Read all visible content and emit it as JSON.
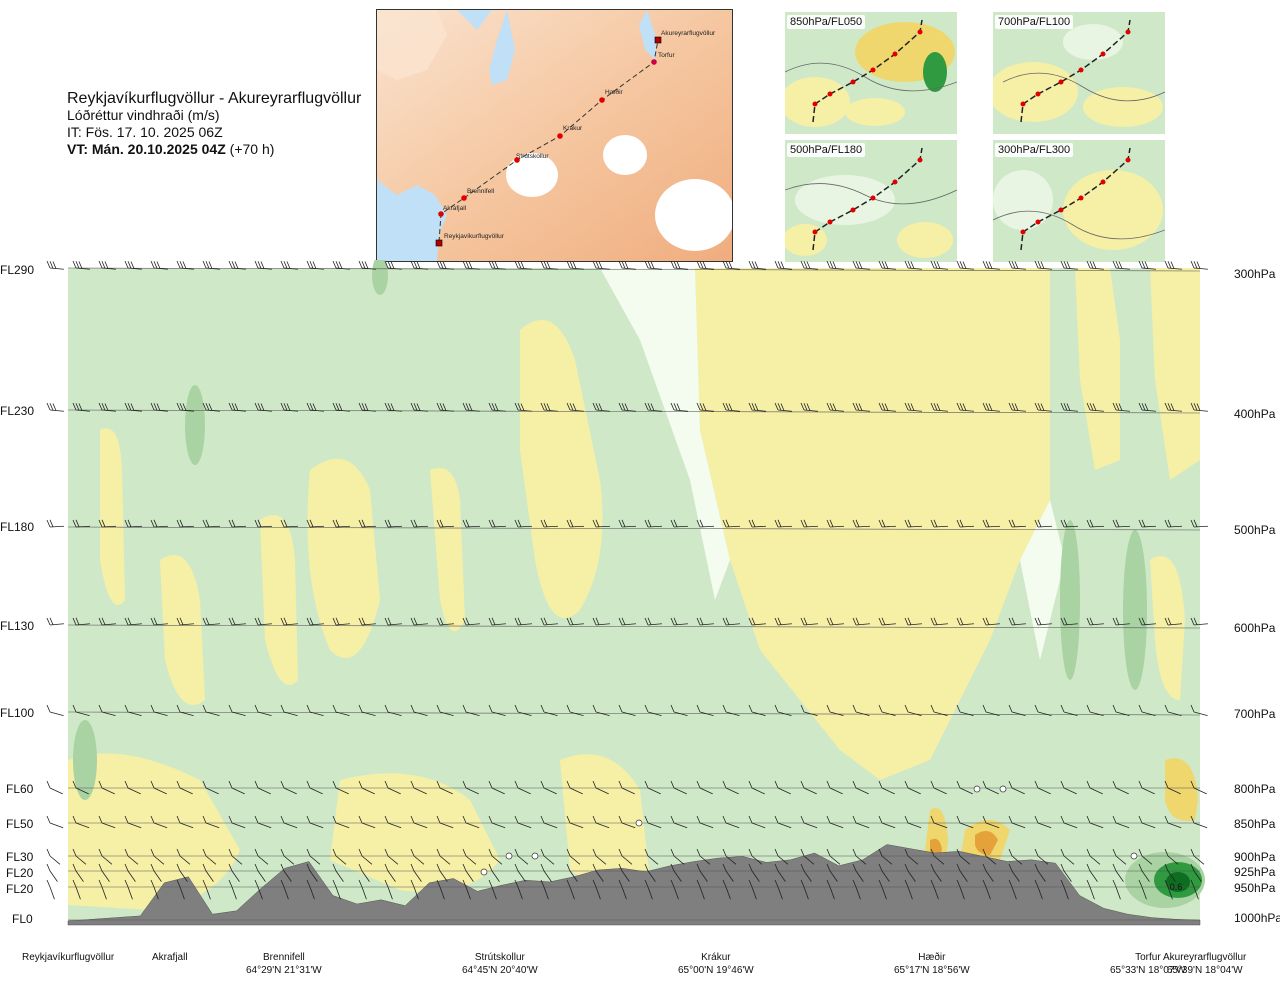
{
  "header": {
    "route": "Reykjavíkurflugvöllur - Akureyrarflugvöllur",
    "variable": "Lóðréttur vindhraði (m/s)",
    "issue_time": "IT: Fös. 17. 10. 2025 06Z",
    "valid_time_label": "VT: Mán. 20.10.2025 04Z",
    "lead_time": "(+70 h)"
  },
  "overview_map": {
    "stations": [
      {
        "name": "Akureyrarflugvöllur"
      },
      {
        "name": "Torfur"
      },
      {
        "name": "Hæðir"
      },
      {
        "name": "Krákur"
      },
      {
        "name": "Strútskollur"
      },
      {
        "name": "Brennifell"
      },
      {
        "name": "Akrafjall"
      },
      {
        "name": "Reykjavíkurflugvöllur"
      }
    ]
  },
  "insets": [
    {
      "label": "850hPa/FL050"
    },
    {
      "label": "700hPa/FL100"
    },
    {
      "label": "500hPa/FL180"
    },
    {
      "label": "300hPa/FL300"
    }
  ],
  "colors": {
    "green_light": "#cfe9c8",
    "green_mid": "#a9d3a3",
    "green_dark": "#2f9a3f",
    "green_darkest": "#0f6d22",
    "yellow_light": "#f6efa6",
    "yellow_mid": "#efd66d",
    "orange": "#e5a23a",
    "white_band": "#f4fbef",
    "terrain": "#7f7f7f",
    "water": "#bfe0f7",
    "land": "#f4c9a2"
  },
  "chart_data": {
    "type": "heatmap",
    "title": "Lóðréttur vindhraði (m/s)",
    "xlabel": "Reykjavíkurflugvöllur - Akureyrarflugvöllur",
    "ylabel": "",
    "left_axis_labels": [
      "FL290",
      "FL230",
      "FL180",
      "FL130",
      "FL100",
      "FL60",
      "FL50",
      "FL30",
      "FL20",
      "FL20",
      "FL0"
    ],
    "right_axis_labels": [
      "300hPa",
      "400hPa",
      "500hPa",
      "600hPa",
      "700hPa",
      "800hPa",
      "850hPa",
      "900hPa",
      "925hPa",
      "950hPa",
      "1000hPa"
    ],
    "pressure_levels_hPa": [
      300,
      400,
      500,
      600,
      700,
      800,
      850,
      900,
      925,
      950,
      1000
    ],
    "locations": [
      {
        "name": "Reykjavíkurflugvöllur",
        "coords": ""
      },
      {
        "name": "Akrafjall",
        "coords": ""
      },
      {
        "name": "Brennifell",
        "coords": "64°29'N 21°31'W"
      },
      {
        "name": "Strútskollur",
        "coords": "64°45'N 20°40'W"
      },
      {
        "name": "Krákur",
        "coords": "65°00'N 19°46'W"
      },
      {
        "name": "Hæðir",
        "coords": "65°17'N 18°56'W"
      },
      {
        "name": "Torfur",
        "coords": "65°33'N 18°07'W"
      },
      {
        "name": "Akureyrarflugvöllur",
        "coords": "65°39'N 18°04'W"
      }
    ],
    "annotations": [
      "0.6"
    ],
    "terrain_profile_m": [
      0,
      20,
      40,
      60,
      450,
      520,
      80,
      120,
      380,
      620,
      700,
      300,
      200,
      250,
      180,
      450,
      500,
      350,
      420,
      480,
      460,
      520,
      600,
      620,
      580,
      650,
      700,
      740,
      760,
      690,
      720,
      800,
      650,
      720,
      900,
      850,
      800,
      820,
      760,
      700,
      720,
      680,
      300,
      150,
      80,
      40,
      20,
      10
    ]
  }
}
